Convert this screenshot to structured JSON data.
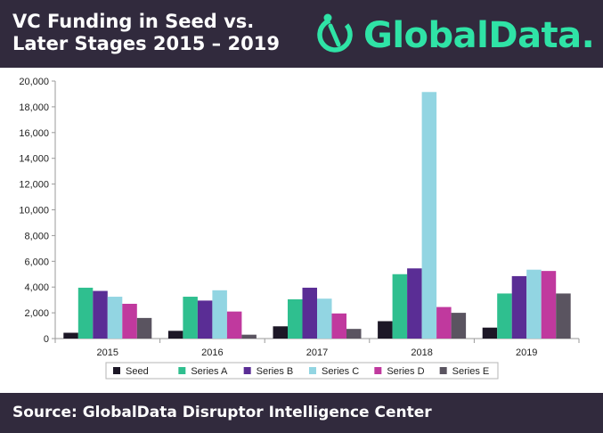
{
  "header": {
    "title": "VC Funding in Seed vs.\nLater Stages 2015 – 2019",
    "brand_name": "GlobalData.",
    "brand_color": "#2fe3a6",
    "brand_icon": "globaldata-logo-icon",
    "background": "#312a3d"
  },
  "footer": {
    "source": "Source: GlobalData Disruptor Intelligence Center"
  },
  "chart_data": {
    "type": "bar",
    "categories": [
      "2015",
      "2016",
      "2017",
      "2018",
      "2019"
    ],
    "ylim": [
      0,
      20000
    ],
    "yticks": [
      0,
      2000,
      4000,
      6000,
      8000,
      10000,
      12000,
      14000,
      16000,
      18000,
      20000
    ],
    "ytick_labels": [
      "0",
      "2,000",
      "4,000",
      "6,000",
      "8,000",
      "10,000",
      "12,000",
      "14,000",
      "16,000",
      "18,000",
      "20,000"
    ],
    "grid": false,
    "legend": "bottom",
    "title": "",
    "xlabel": "",
    "ylabel": "",
    "series": [
      {
        "name": "Seed",
        "color": "#1c1726",
        "values": [
          450,
          600,
          950,
          1350,
          850
        ]
      },
      {
        "name": "Series A",
        "color": "#2fbf8f",
        "values": [
          3950,
          3250,
          3050,
          5000,
          3500
        ]
      },
      {
        "name": "Series B",
        "color": "#5a2d95",
        "values": [
          3700,
          2950,
          3950,
          5450,
          4850
        ]
      },
      {
        "name": "Series C",
        "color": "#92d5e2",
        "values": [
          3250,
          3750,
          3100,
          19150,
          5350
        ]
      },
      {
        "name": "Series D",
        "color": "#c0399e",
        "values": [
          2700,
          2100,
          1950,
          2450,
          5250
        ]
      },
      {
        "name": "Series E",
        "color": "#5a5460",
        "values": [
          1600,
          300,
          750,
          2000,
          3500
        ]
      }
    ]
  }
}
